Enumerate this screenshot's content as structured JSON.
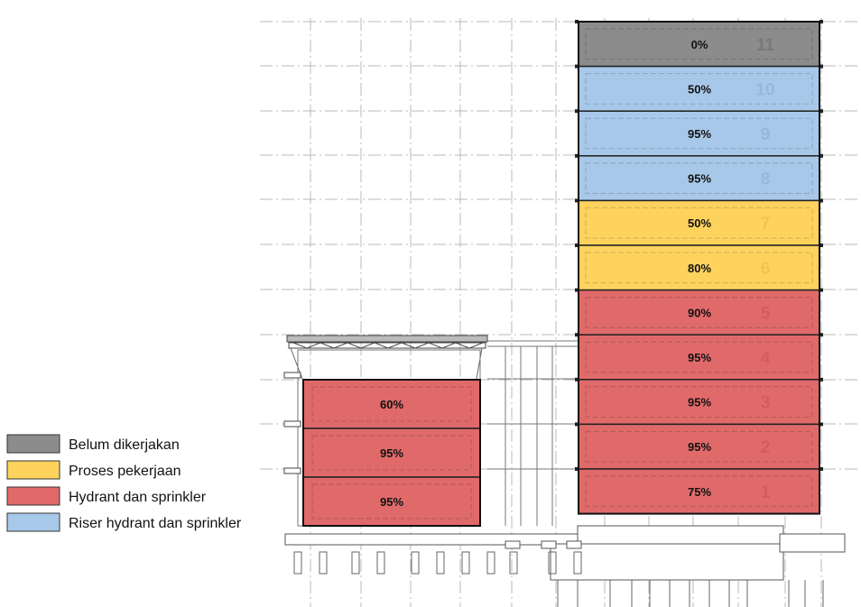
{
  "legend": [
    {
      "key": "belum",
      "label": "Belum dikerjakan",
      "color": "#8c8c8c"
    },
    {
      "key": "proses",
      "label": "Proses pekerjaan",
      "color": "#fdd35e"
    },
    {
      "key": "hydrant",
      "label": "Hydrant dan sprinkler",
      "color": "#e06a6a"
    },
    {
      "key": "riser",
      "label": "Riser hydrant dan sprinkler",
      "color": "#a8c8ea"
    }
  ],
  "tower": {
    "floors": [
      {
        "floor": "11",
        "progress": "0%",
        "status": "belum"
      },
      {
        "floor": "10",
        "progress": "50%",
        "status": "riser"
      },
      {
        "floor": "9",
        "progress": "95%",
        "status": "riser"
      },
      {
        "floor": "8",
        "progress": "95%",
        "status": "riser"
      },
      {
        "floor": "7",
        "progress": "50%",
        "status": "proses"
      },
      {
        "floor": "6",
        "progress": "80%",
        "status": "proses"
      },
      {
        "floor": "5",
        "progress": "90%",
        "status": "hydrant"
      },
      {
        "floor": "4",
        "progress": "95%",
        "status": "hydrant"
      },
      {
        "floor": "3",
        "progress": "95%",
        "status": "hydrant"
      },
      {
        "floor": "2",
        "progress": "95%",
        "status": "hydrant"
      },
      {
        "floor": "1",
        "progress": "75%",
        "status": "hydrant"
      }
    ]
  },
  "podium": {
    "floors": [
      {
        "progress": "60%",
        "status": "hydrant"
      },
      {
        "progress": "95%",
        "status": "hydrant"
      },
      {
        "progress": "95%",
        "status": "hydrant"
      }
    ]
  }
}
